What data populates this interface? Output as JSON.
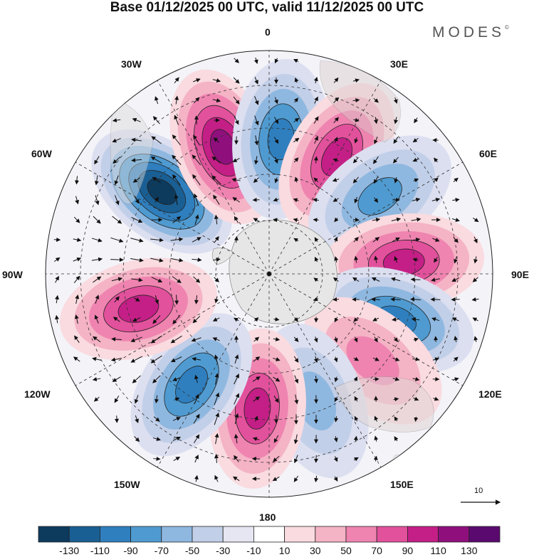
{
  "title": "Base 01/12/2025 00 UTC, valid 11/12/2025 00 UTC",
  "brand": "MODES",
  "brand_mark": "©",
  "longitude_labels": {
    "l0": "0",
    "l30e": "30E",
    "l60e": "60E",
    "l90e": "90E",
    "l120e": "120E",
    "l150e": "150E",
    "l180": "180",
    "l150w": "150W",
    "l120w": "120W",
    "l90w": "90W",
    "l60w": "60W",
    "l30w": "30W"
  },
  "vector_scale_label": "10",
  "colorbar": {
    "colors": [
      "#0d3b5e",
      "#1a5f93",
      "#2f7fbf",
      "#4f9bd1",
      "#8fb8e0",
      "#c2cfe8",
      "#e6e6f2",
      "#ffffff",
      "#f9dbe0",
      "#f5b3c6",
      "#ef84b0",
      "#e2519c",
      "#c41f86",
      "#8f0f7d",
      "#5a0a6e"
    ],
    "ticks": [
      "-130",
      "-110",
      "-90",
      "-70",
      "-50",
      "-30",
      "-10",
      "10",
      "30",
      "50",
      "70",
      "90",
      "110",
      "130"
    ]
  },
  "anomaly_centers": [
    {
      "sign": "negative",
      "strength": 0.95,
      "near": "60W-45W"
    },
    {
      "sign": "positive",
      "strength": 0.95,
      "near": "20W"
    },
    {
      "sign": "negative",
      "strength": 0.7,
      "near": "5E"
    },
    {
      "sign": "positive",
      "strength": 0.75,
      "near": "30E"
    },
    {
      "sign": "negative",
      "strength": 0.6,
      "near": "55E"
    },
    {
      "sign": "positive",
      "strength": 0.8,
      "near": "85E"
    },
    {
      "sign": "negative",
      "strength": 0.75,
      "near": "110E"
    },
    {
      "sign": "positive",
      "strength": 0.45,
      "near": "130E"
    },
    {
      "sign": "negative",
      "strength": 0.45,
      "near": "160E"
    },
    {
      "sign": "positive",
      "strength": 0.85,
      "near": "175W"
    },
    {
      "sign": "negative",
      "strength": 0.75,
      "near": "145W"
    },
    {
      "sign": "positive",
      "strength": 0.75,
      "near": "105W"
    }
  ]
}
